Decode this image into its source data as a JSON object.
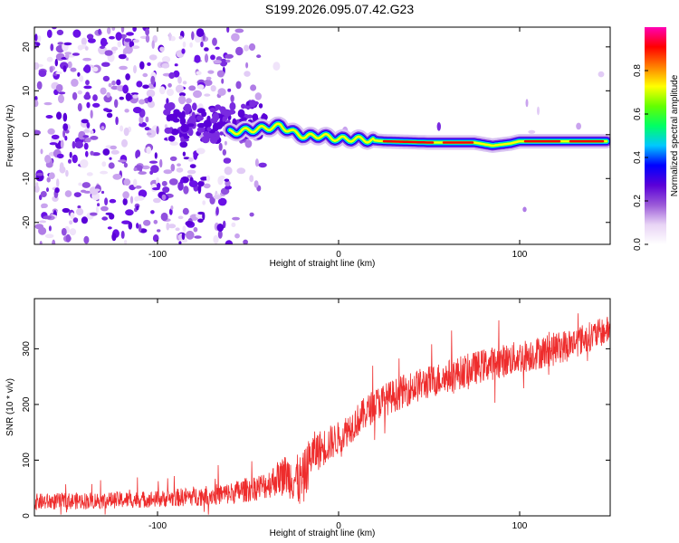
{
  "title": "S199.2026.095.07.42.G23",
  "chart_data": [
    {
      "type": "heatmap",
      "xlabel": "Height of straight line (km)",
      "ylabel": "Frequency (Hz)",
      "xlim": [
        -168,
        150
      ],
      "ylim": [
        -25,
        24.5
      ],
      "xticks": [
        -100,
        0,
        100
      ],
      "xtick_labels": [
        "-100",
        "0",
        "100"
      ],
      "yticks": [
        -20,
        -10,
        0,
        10,
        20
      ],
      "ytick_labels": [
        "-20",
        "-10",
        "0",
        "10",
        "20"
      ],
      "ridge": {
        "x": [
          -60,
          -50,
          -40,
          -32,
          -25,
          -18,
          -10,
          0,
          10,
          25,
          50,
          75,
          85,
          95,
          100,
          125,
          148
        ],
        "y": [
          0.5,
          1,
          1.5,
          2,
          0.5,
          -0.5,
          -0.2,
          -1,
          -1,
          -1.5,
          -1.8,
          -1.8,
          -2.5,
          -2,
          -1.5,
          -1.5,
          -1.5
        ]
      },
      "colorbar": {
        "label": "Normalized spectral amplitude",
        "range": [
          0,
          1
        ],
        "ticks": [
          0.0,
          0.2,
          0.4,
          0.6,
          0.8
        ],
        "tick_labels": [
          "0.0",
          "0.2",
          "0.4",
          "0.6",
          "0.8"
        ],
        "colors": [
          "#ffffff",
          "#e8d4f5",
          "#9b59d8",
          "#5a00d8",
          "#0000ff",
          "#00c8ff",
          "#00ff64",
          "#64ff00",
          "#ffff00",
          "#ff8000",
          "#ff0000",
          "#ff00b4"
        ]
      }
    },
    {
      "type": "line",
      "xlabel": "Height of straight line (km)",
      "ylabel": "SNR (10 * v/v)",
      "xlim": [
        -168,
        150
      ],
      "ylim": [
        0,
        390
      ],
      "xticks": [
        -100,
        0,
        100
      ],
      "xtick_labels": [
        "-100",
        "0",
        "100"
      ],
      "yticks": [
        0,
        100,
        200,
        300
      ],
      "ytick_labels": [
        "0",
        "100",
        "200",
        "300"
      ],
      "series": [
        {
          "name": "SNR",
          "color": "#ee2c2c",
          "trend_x": [
            -168,
            -100,
            -60,
            -40,
            -30,
            -20,
            -15,
            -10,
            0,
            20,
            40,
            60,
            80,
            100,
            120,
            150
          ],
          "trend_y": [
            25,
            30,
            40,
            55,
            75,
            60,
            110,
            120,
            140,
            200,
            230,
            250,
            270,
            285,
            300,
            335
          ],
          "noise": [
            15,
            15,
            20,
            25,
            35,
            50,
            40,
            35,
            30,
            30,
            30,
            30,
            30,
            30,
            30,
            25
          ]
        }
      ]
    }
  ]
}
